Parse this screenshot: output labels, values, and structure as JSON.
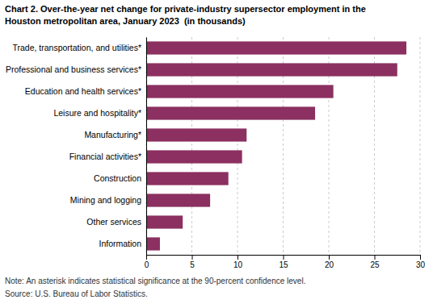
{
  "chart_data": {
    "type": "bar",
    "orientation": "horizontal",
    "title": "Chart 2. Over-the-year net change for private-industry supersector employment in the\nHouston metropolitan area, January 2023  (in thousands)",
    "categories": [
      "Information",
      "Other services",
      "Mining and logging",
      "Construction",
      "Financial activities*",
      "Manufacturing*",
      "Leisure and hospitality*",
      "Education and health services*",
      "Professional and business services*",
      "Trade, transportation, and utilities*"
    ],
    "values": [
      1.5,
      4.0,
      7.0,
      9.0,
      10.5,
      11.0,
      18.5,
      20.5,
      27.5,
      28.5
    ],
    "color": "#8B3060",
    "xlim": [
      0,
      30
    ],
    "xticks": [
      0,
      5,
      10,
      15,
      20,
      25,
      30
    ],
    "grid": true,
    "annotations": [
      "Note: An asterisk indicates statistical significance at the 90-percent confidence level.",
      "Source: U.S. Bureau of Labor Statistics."
    ]
  }
}
